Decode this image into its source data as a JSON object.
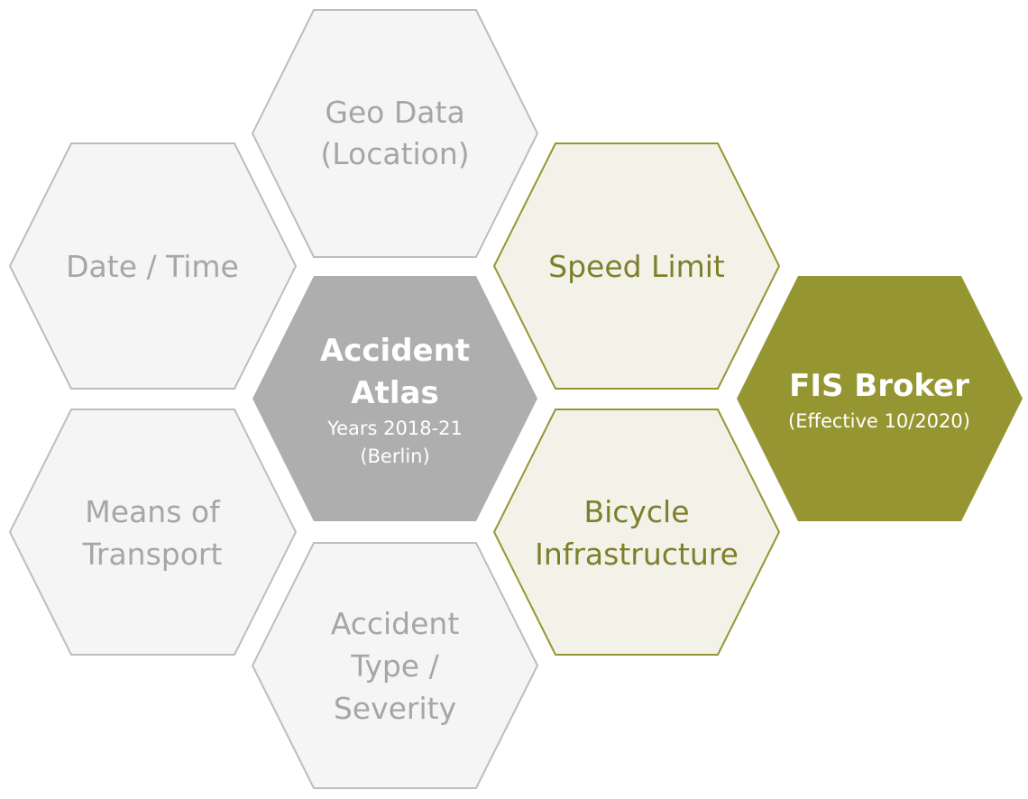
{
  "colors": {
    "gray_fill": "#f5f5f5",
    "gray_stroke": "#bdbdbd",
    "gray_text": "#a6a6a6",
    "center_fill": "#aeaeae",
    "center_text": "#ffffff",
    "olive_light_fill": "#f2f2e9",
    "olive_stroke": "#959632",
    "olive_text": "#7e7f2a",
    "olive_dark_fill": "#959632",
    "olive_dark_text": "#ffffff"
  },
  "hexes": {
    "geo_data": {
      "lines": [
        "Geo Data",
        "(Location)"
      ]
    },
    "date_time": {
      "lines": [
        "Date / Time"
      ]
    },
    "means_of_transport": {
      "lines": [
        "Means of",
        "Transport"
      ]
    },
    "accident_type": {
      "lines": [
        "Accident",
        "Type /",
        "Severity"
      ]
    },
    "accident_atlas": {
      "title_lines": [
        "Accident",
        "Atlas"
      ],
      "sub_lines": [
        "Years 2018-21",
        "(Berlin)"
      ]
    },
    "speed_limit": {
      "lines": [
        "Speed Limit"
      ]
    },
    "bicycle_infrastructure": {
      "lines": [
        "Bicycle",
        "Infrastructure"
      ]
    },
    "fis_broker": {
      "title_lines": [
        "FIS Broker"
      ],
      "sub_lines": [
        "(Effective 10/2020)"
      ]
    }
  }
}
